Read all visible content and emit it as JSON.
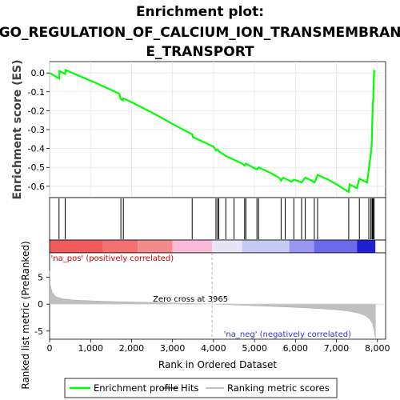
{
  "chart_data": {
    "type": "line",
    "title_lines": [
      "Enrichment plot:",
      "GO_REGULATION_OF_CALCIUM_ION_TRANSMEMBRAN",
      "E_TRANSPORT"
    ],
    "es_ylabel": "Enrichment score (ES)",
    "metric_ylabel": "Ranked list metric (PreRanked)",
    "xlabel": "Rank in Ordered Dataset",
    "xlim": [
      0,
      8200
    ],
    "x_ticks": [
      0,
      1000,
      2000,
      3000,
      4000,
      5000,
      6000,
      7000,
      8000
    ],
    "x_tick_labels": [
      "0",
      "1,000",
      "2,000",
      "3,000",
      "4,000",
      "5,000",
      "6,000",
      "7,000",
      "8,000"
    ],
    "es_ylim": [
      -0.66,
      0.06
    ],
    "es_ticks": [
      0.0,
      -0.1,
      -0.2,
      -0.3,
      -0.4,
      -0.5,
      -0.6
    ],
    "es_tick_labels": [
      "0.0",
      "-0.1",
      "-0.2",
      "-0.3",
      "-0.4",
      "-0.5",
      "-0.6"
    ],
    "metric_ylim": [
      -6.5,
      9.5
    ],
    "metric_ticks": [
      5,
      0,
      -5
    ],
    "metric_tick_labels": [
      "5",
      "0",
      "-5"
    ],
    "series": [
      {
        "name": "Enrichment profile",
        "color": "#00ff00",
        "x": [
          0,
          120,
          230,
          240,
          330,
          380,
          390,
          500,
          700,
          900,
          1100,
          1300,
          1500,
          1700,
          1740,
          1790,
          1800,
          2000,
          2500,
          3000,
          3480,
          3500,
          4000,
          4060,
          4100,
          4130,
          4200,
          4300,
          4500,
          4700,
          4760,
          4790,
          5000,
          5060,
          5100,
          5200,
          5400,
          5600,
          5650,
          5700,
          5750,
          5900,
          5960,
          6100,
          6150,
          6200,
          6240,
          6400,
          6460,
          6500,
          6540,
          6800,
          7000,
          7300,
          7320,
          7500,
          7560,
          7750,
          7790,
          7820,
          7840,
          7860,
          7870,
          7880,
          7900,
          7920,
          7950
        ],
        "y": [
          0.0,
          -0.015,
          -0.03,
          0.01,
          0.0,
          -0.005,
          0.015,
          0.005,
          -0.013,
          -0.032,
          -0.05,
          -0.07,
          -0.09,
          -0.11,
          -0.14,
          -0.145,
          -0.135,
          -0.155,
          -0.21,
          -0.27,
          -0.325,
          -0.34,
          -0.39,
          -0.41,
          -0.405,
          -0.415,
          -0.425,
          -0.44,
          -0.46,
          -0.48,
          -0.49,
          -0.48,
          -0.505,
          -0.51,
          -0.5,
          -0.51,
          -0.53,
          -0.555,
          -0.57,
          -0.555,
          -0.56,
          -0.575,
          -0.565,
          -0.575,
          -0.58,
          -0.565,
          -0.555,
          -0.57,
          -0.58,
          -0.565,
          -0.54,
          -0.565,
          -0.59,
          -0.63,
          -0.59,
          -0.61,
          -0.56,
          -0.58,
          -0.51,
          -0.46,
          -0.43,
          -0.38,
          -0.3,
          -0.22,
          -0.12,
          0.01,
          0.005
        ]
      },
      {
        "name": "Hits",
        "color": "#000000",
        "x": [
          230,
          380,
          1740,
          1800,
          3480,
          4060,
          4100,
          4130,
          4300,
          4500,
          4760,
          4790,
          5060,
          5100,
          5650,
          5750,
          5960,
          6150,
          6240,
          6460,
          6540,
          7300,
          7560,
          7790,
          7840,
          7870,
          7880,
          7900,
          7920
        ]
      },
      {
        "name": "Ranking metric scores",
        "color": "#c0c0c0",
        "x": [
          0,
          20,
          60,
          150,
          300,
          600,
          1000,
          1500,
          2000,
          2500,
          3000,
          3500,
          3965,
          4500,
          5000,
          5500,
          6000,
          6500,
          7000,
          7300,
          7500,
          7700,
          7800,
          7880,
          7920,
          7950
        ],
        "y": [
          6.2,
          3.5,
          2.2,
          1.4,
          1.0,
          0.75,
          0.6,
          0.48,
          0.4,
          0.3,
          0.2,
          0.1,
          0.0,
          -0.15,
          -0.3,
          -0.45,
          -0.6,
          -0.8,
          -1.05,
          -1.3,
          -1.6,
          -2.1,
          -2.7,
          -3.6,
          -4.8,
          -6.3
        ]
      }
    ],
    "annotations": {
      "pos_label": "'na_pos' (positively correlated)",
      "neg_label": "'na_neg' (negatively correlated)",
      "zero_cross": "Zero cross at 3965",
      "zero_cross_x": 3965
    },
    "legend_position": "bottom"
  }
}
